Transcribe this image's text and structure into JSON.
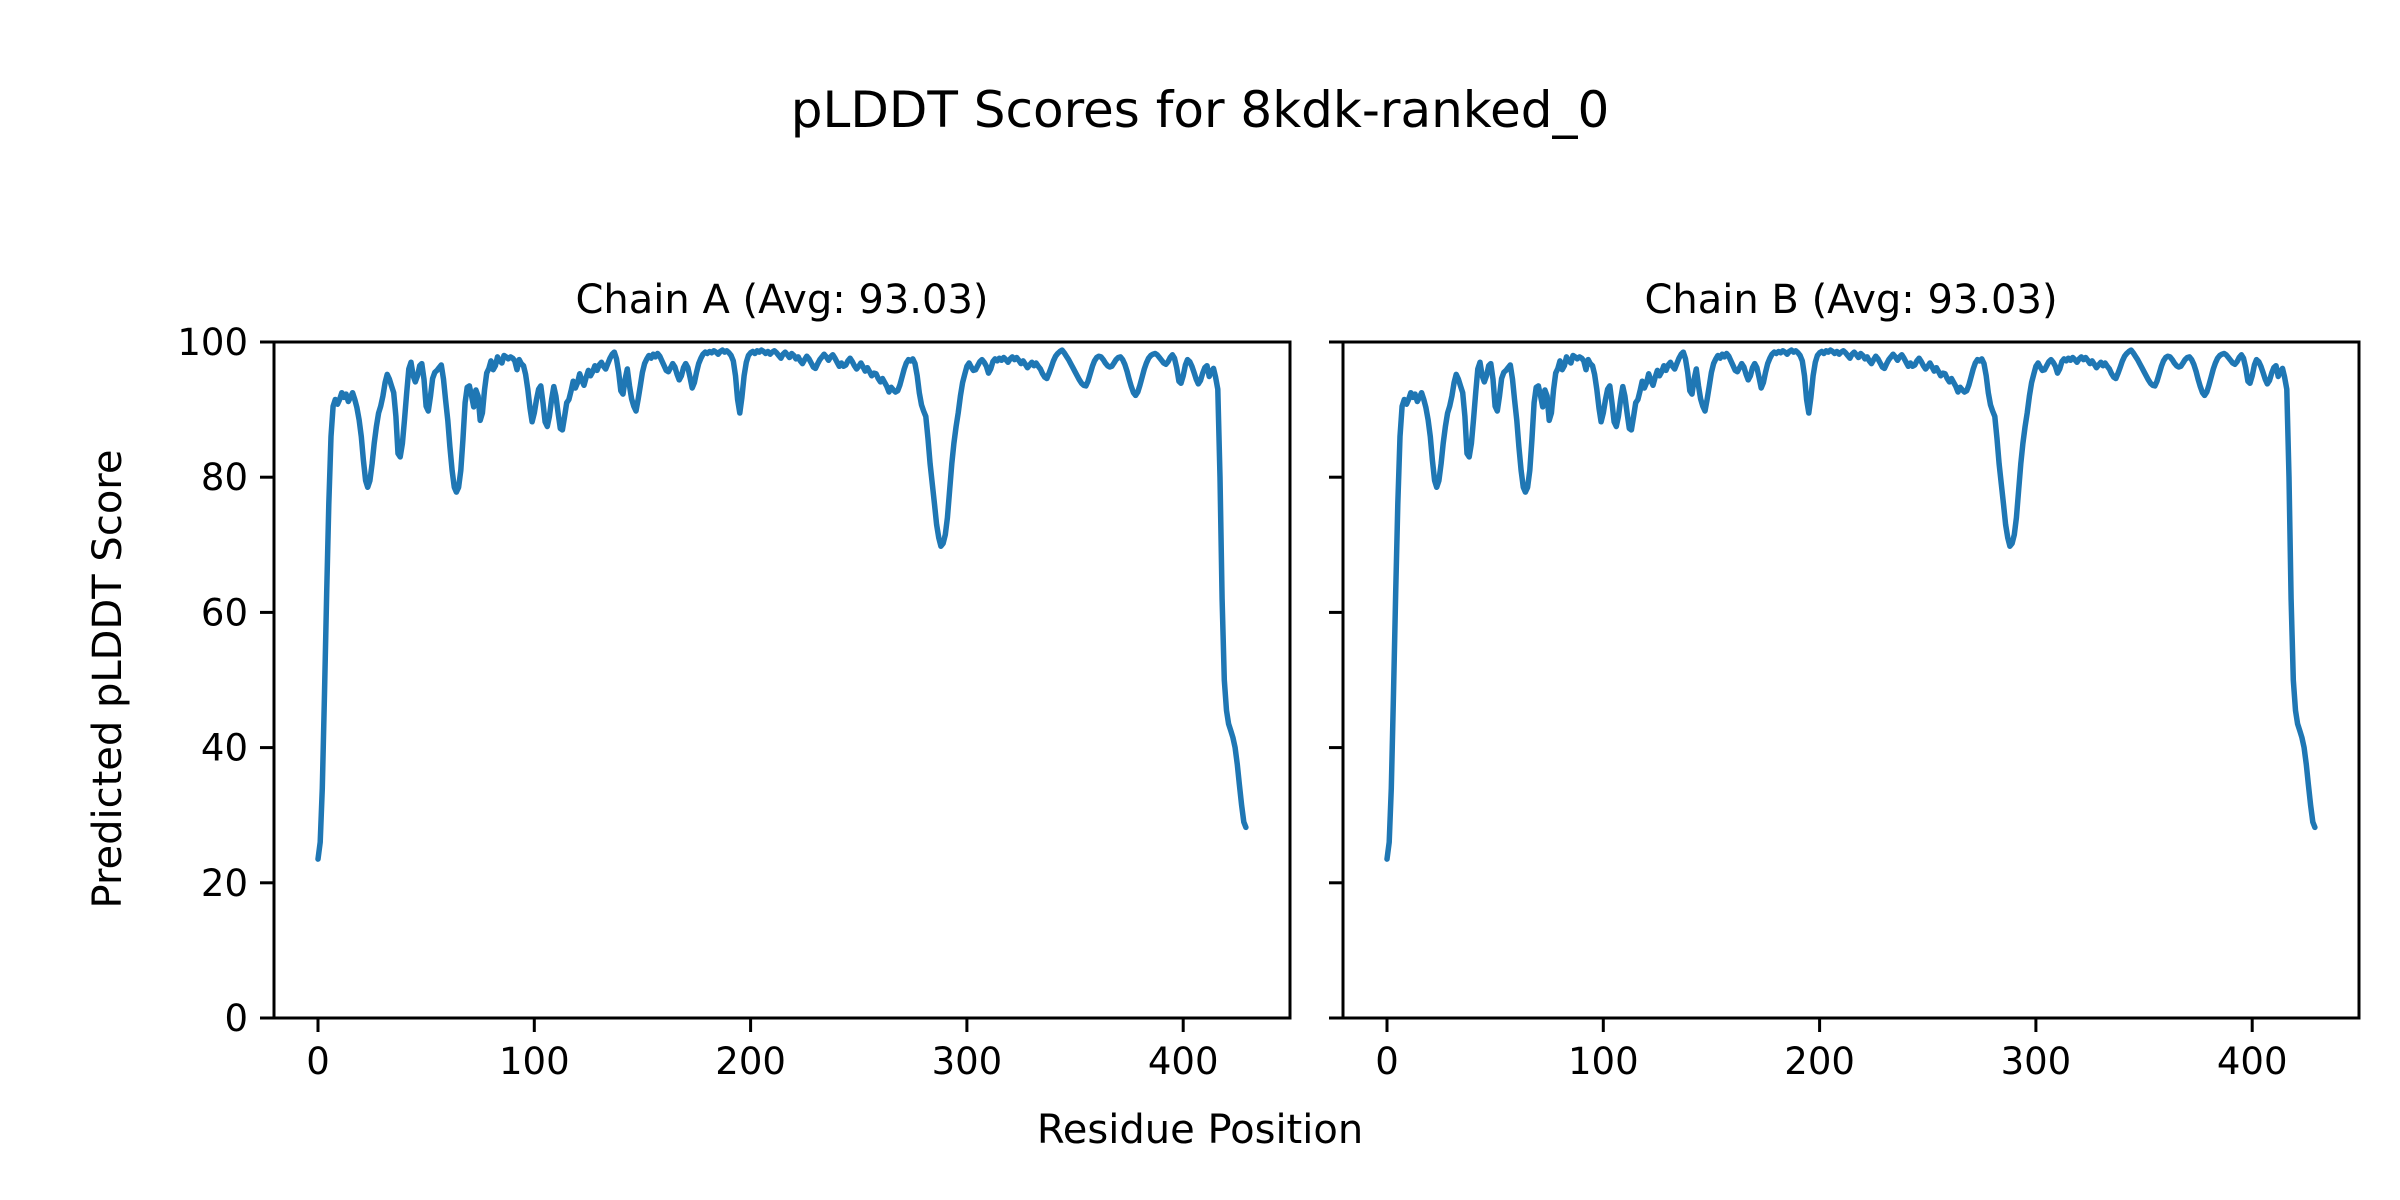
{
  "title": "pLDDT Scores for 8kdk-ranked_0",
  "xlabel": "Residue Position",
  "ylabel": "Predicted pLDDT Score",
  "chart_data": {
    "type": "line",
    "title": "pLDDT Scores for 8kdk-ranked_0",
    "xlabel": "Residue Position",
    "ylabel": "Predicted pLDDT Score",
    "line_color": "#1f77b4",
    "background": "#ffffff",
    "grid": false,
    "legend": "none",
    "ylim": [
      0,
      100
    ],
    "xlim": [
      -20.3,
      449.4
    ],
    "xticks": [
      0,
      100,
      200,
      300,
      400
    ],
    "yticks": [
      0,
      20,
      40,
      60,
      80,
      100
    ],
    "x_is_residue_index_starting_at": 0,
    "series": [
      {
        "name": "Chain A",
        "subplot_title": "Chain A (Avg: 93.03)",
        "avg": 93.03,
        "values": [
          23.5,
          26,
          34,
          48,
          63,
          76,
          86,
          90.5,
          91.5,
          90.8,
          91.5,
          92.5,
          91.8,
          92.3,
          91.2,
          91.8,
          92.5,
          91.5,
          90.3,
          88.5,
          86,
          82.5,
          79.5,
          78.5,
          79.5,
          82,
          85,
          87.5,
          89.5,
          90.5,
          92,
          94,
          95.2,
          94.5,
          93.5,
          92.5,
          89,
          83.5,
          83,
          85,
          88.5,
          92.5,
          96,
          97,
          95,
          94.1,
          95,
          96.5,
          96.8,
          94.5,
          90.5,
          89.8,
          92,
          94.6,
          95.5,
          95.8,
          96.2,
          96.6,
          94.5,
          91.4,
          88.4,
          84.5,
          81,
          78.5,
          77.8,
          78.5,
          81,
          85.5,
          91,
          93.3,
          93.5,
          92,
          90.4,
          92.9,
          92,
          88.4,
          89.5,
          93,
          95.4,
          96.1,
          97.2,
          95.9,
          96.5,
          97.8,
          97.2,
          96.9,
          98,
          97.8,
          97.5,
          97.8,
          97.6,
          97.2,
          95.9,
          97.4,
          96.8,
          96.5,
          95.2,
          93,
          90.2,
          88.2,
          89.5,
          91.5,
          93,
          93.5,
          91,
          88.2,
          87.5,
          89,
          91.5,
          93.4,
          92,
          89.5,
          87.2,
          87,
          89,
          91,
          91.5,
          92.8,
          94.2,
          93.2,
          94,
          95.3,
          94.3,
          93.6,
          94.8,
          95.8,
          95,
          95.6,
          96.5,
          95.8,
          96.6,
          97,
          96.4,
          96,
          96.8,
          97.6,
          98.2,
          98.5,
          97.5,
          95.5,
          92.8,
          92.3,
          94.5,
          96,
          93.5,
          91.6,
          90.5,
          89.8,
          91.5,
          93.5,
          95.5,
          96.8,
          97.5,
          98,
          97.6,
          98.2,
          97.8,
          98.3,
          97.9,
          97.2,
          96.5,
          95.8,
          95.6,
          96.2,
          96.8,
          96.3,
          95.2,
          94.4,
          95,
          96.2,
          96.8,
          96.2,
          94.8,
          93.2,
          94,
          95.5,
          96.8,
          97.6,
          98.2,
          98.5,
          98.3,
          98.6,
          98.4,
          98.7,
          98.5,
          98.2,
          98.6,
          98.8,
          98.5,
          98.7,
          98.4,
          98,
          97.2,
          95,
          91.5,
          89.5,
          91.8,
          95,
          97,
          98,
          98.4,
          98.6,
          98.3,
          98.7,
          98.5,
          98.8,
          98.6,
          98.3,
          98.6,
          98.2,
          98.5,
          98.7,
          98.4,
          98,
          97.6,
          98.2,
          98.5,
          98.1,
          97.7,
          98.3,
          98,
          97.5,
          97.8,
          97.2,
          96.8,
          97.4,
          97.9,
          97.5,
          96.9,
          96.3,
          96.1,
          96.8,
          97.4,
          97.8,
          98.2,
          97.8,
          97.3,
          97.8,
          98.1,
          97.6,
          97,
          96.4,
          96.9,
          96.4,
          96.6,
          97.2,
          97.6,
          97.1,
          96.5,
          96,
          96.4,
          96.9,
          96.3,
          95.7,
          96.2,
          95.6,
          95,
          95.4,
          95.3,
          94.6,
          94.1,
          94.6,
          94,
          93.4,
          92.6,
          93.3,
          92.9,
          92.6,
          92.8,
          93.6,
          94.8,
          96,
          96.9,
          97.4,
          97.2,
          97.5,
          96.8,
          95,
          92.5,
          90.7,
          89.8,
          89,
          85.7,
          82,
          79,
          76,
          73,
          71,
          69.8,
          70.2,
          71.5,
          74,
          78,
          82,
          85,
          87.5,
          89.5,
          92,
          94,
          95.2,
          96.4,
          96.9,
          96.3,
          95.8,
          95.9,
          96.5,
          97.1,
          97.4,
          97,
          96.4,
          95.4,
          96,
          97.1,
          97.5,
          97.2,
          97.6,
          97.3,
          97.7,
          97.4,
          97,
          97.5,
          97.8,
          97.4,
          97.7,
          97.3,
          96.8,
          97.2,
          96.7,
          96.2,
          96.6,
          97,
          96.5,
          96.9,
          96.4,
          96,
          95.3,
          94.8,
          94.6,
          95.4,
          96.3,
          97.2,
          97.9,
          98.3,
          98.6,
          98.8,
          98.4,
          97.9,
          97.4,
          96.8,
          96.2,
          95.6,
          95,
          94.4,
          93.9,
          93.6,
          93.5,
          94.2,
          95.3,
          96.4,
          97.2,
          97.7,
          97.9,
          97.8,
          97.4,
          96.9,
          96.5,
          96.3,
          96.4,
          96.9,
          97.4,
          97.7,
          97.8,
          97.4,
          96.7,
          95.7,
          94.5,
          93.4,
          92.5,
          92.1,
          92.6,
          93.6,
          94.8,
          96,
          96.9,
          97.6,
          98,
          98.2,
          98.3,
          98.1,
          97.7,
          97.3,
          96.9,
          96.7,
          97.1,
          97.7,
          98.1,
          97.6,
          96.2,
          94.2,
          93.9,
          95,
          96.6,
          97.4,
          97.1,
          96.4,
          95.5,
          94.5,
          93.8,
          94.3,
          95.4,
          96.2,
          96.5,
          94.9,
          95.6,
          96.1,
          94.8,
          93,
          80,
          62,
          50,
          45.5,
          43.5,
          42.5,
          41.5,
          40,
          37.5,
          34.5,
          31.5,
          29,
          28.2
        ]
      },
      {
        "name": "Chain B",
        "subplot_title": "Chain B (Avg: 93.03)",
        "avg": 93.03,
        "values_ref": 0,
        "identical_to": "Chain A"
      }
    ]
  }
}
